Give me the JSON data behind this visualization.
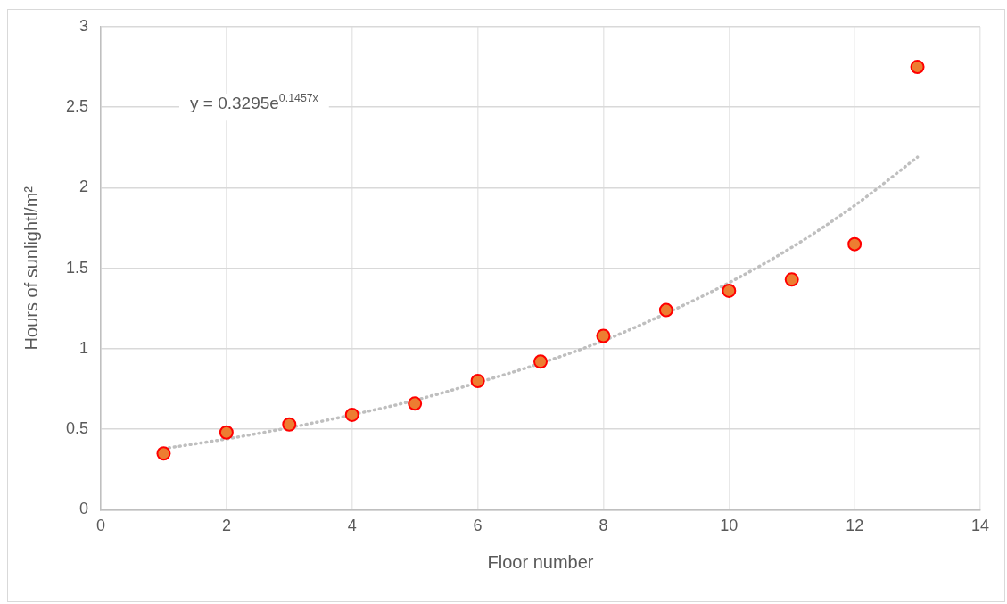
{
  "chart_data": {
    "type": "scatter",
    "xlabel": "Floor number",
    "ylabel": "Hours of sunlightl/m²",
    "xlim": [
      0,
      14
    ],
    "xticks": [
      0,
      2,
      4,
      6,
      8,
      10,
      12,
      14
    ],
    "ylim": [
      0,
      3
    ],
    "yticks": [
      0,
      0.5,
      1,
      1.5,
      2,
      2.5,
      3
    ],
    "grid": true,
    "marker": "circle",
    "series": [
      {
        "color": "#ed7d31",
        "x": [
          1,
          2,
          3,
          4,
          5,
          6,
          7,
          8,
          9,
          10,
          11,
          12,
          13
        ],
        "values": [
          0.35,
          0.48,
          0.53,
          0.59,
          0.66,
          0.8,
          0.92,
          1.08,
          1.24,
          1.36,
          1.43,
          1.65,
          2.75
        ]
      },
      {
        "type": "line",
        "color": "#bfbfbf",
        "line_style": "dotted",
        "marker": "none",
        "x": [
          1,
          2,
          3,
          4,
          5,
          6,
          7,
          8,
          9,
          10,
          11,
          12,
          13
        ],
        "values": [
          0.38,
          0.44,
          0.51,
          0.59,
          0.68,
          0.79,
          0.91,
          1.05,
          1.22,
          1.41,
          1.63,
          1.89,
          2.19
        ]
      }
    ],
    "annotations": [
      "y = 0.3295e$^{0.1457x}$"
    ]
  }
}
